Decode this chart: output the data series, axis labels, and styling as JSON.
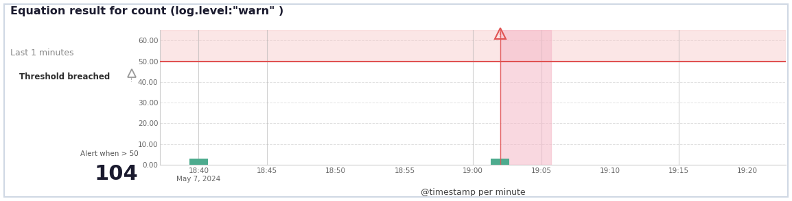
{
  "title": "Equation result for count (log.level:\"warn\" )",
  "subtitle": "Last 1 minutes",
  "xlabel": "@timestamp per minute",
  "threshold": 50,
  "threshold_color": "#e05252",
  "threshold_fill_color": "#f8c8c8",
  "ylim": [
    0,
    65
  ],
  "yticks": [
    0.0,
    10.0,
    20.0,
    30.0,
    40.0,
    50.0,
    60.0
  ],
  "bar_times": [
    18.667,
    19.033
  ],
  "bar_values": [
    3,
    3
  ],
  "bar_color": "#4dab8e",
  "breach_time": 19.033,
  "breach_end": 19.095,
  "breach_fill_color": "#f5b8c8",
  "alert_panel_bg": "#fdf0f0",
  "alert_panel_border": "#e8d0d0",
  "xtick_positions": [
    18.667,
    18.75,
    18.833,
    18.917,
    19.0,
    19.083,
    19.167,
    19.25,
    19.333
  ],
  "xtick_labels": [
    "18:40\nMay 7, 2024",
    "18:45",
    "18:50",
    "18:55",
    "19:00",
    "19:05",
    "19:10",
    "19:15",
    "19:20"
  ],
  "grid_color": "#e0e0e0",
  "vline_color": "#b0b0b0",
  "vline_positions": [
    18.75,
    19.0,
    19.25
  ],
  "figure_bg": "#ffffff",
  "outer_border_color": "#d0d8e4",
  "threshold_label": "Alert when > 50",
  "threshold_value_label": "104",
  "panel_title": "Threshold breached",
  "xlim": [
    18.62,
    19.38
  ]
}
